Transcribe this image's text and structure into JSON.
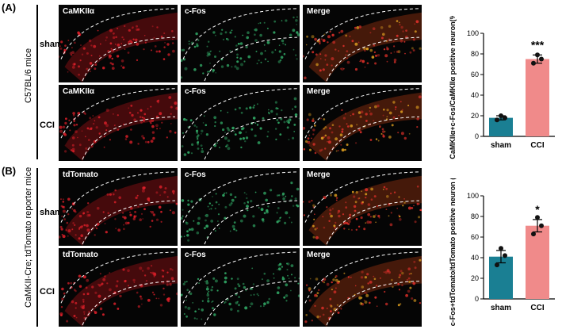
{
  "panels": [
    {
      "id": "A",
      "label": "(A)",
      "group_label": "C57BL/6 mice",
      "rows": [
        {
          "label": "sham",
          "tiles": [
            "CaMKIIα",
            "c-Fos",
            "Merge"
          ]
        },
        {
          "label": "CCI",
          "tiles": [
            "CaMKIIα",
            "c-Fos",
            "Merge"
          ]
        }
      ]
    },
    {
      "id": "B",
      "label": "(B)",
      "group_label": "CaMKII-Cre; tdTomato reporter mice",
      "rows": [
        {
          "label": "sham",
          "tiles": [
            "tdTomato",
            "c-Fos",
            "Merge"
          ]
        },
        {
          "label": "CCI",
          "tiles": [
            "tdTomato",
            "c-Fos",
            "Merge"
          ]
        }
      ]
    }
  ],
  "chart_data": [
    {
      "type": "bar",
      "categories": [
        "sham",
        "CCI"
      ],
      "values": [
        18,
        75
      ],
      "errors": [
        2,
        4
      ],
      "points": [
        [
          16,
          18,
          20
        ],
        [
          71,
          75,
          79
        ]
      ],
      "colors": [
        "#1a7f93",
        "#f08a8a"
      ],
      "ylabel": "CaMKIIα+c-Fos/CaMKIIα positive neuron(%)",
      "ylim": [
        0,
        100
      ],
      "yticks": [
        0,
        20,
        40,
        60,
        80,
        100
      ],
      "significance": "***"
    },
    {
      "type": "bar",
      "categories": [
        "sham",
        "CCI"
      ],
      "values": [
        41,
        71
      ],
      "errors": [
        6,
        6
      ],
      "points": [
        [
          33,
          42,
          49
        ],
        [
          63,
          71,
          79
        ]
      ],
      "colors": [
        "#1a7f93",
        "#f08a8a"
      ],
      "ylabel": "c-Fos+tdTomato/tdTomato positive neuron (%)",
      "ylim": [
        0,
        100
      ],
      "yticks": [
        0,
        20,
        40,
        60,
        80,
        100
      ],
      "significance": "*"
    }
  ]
}
